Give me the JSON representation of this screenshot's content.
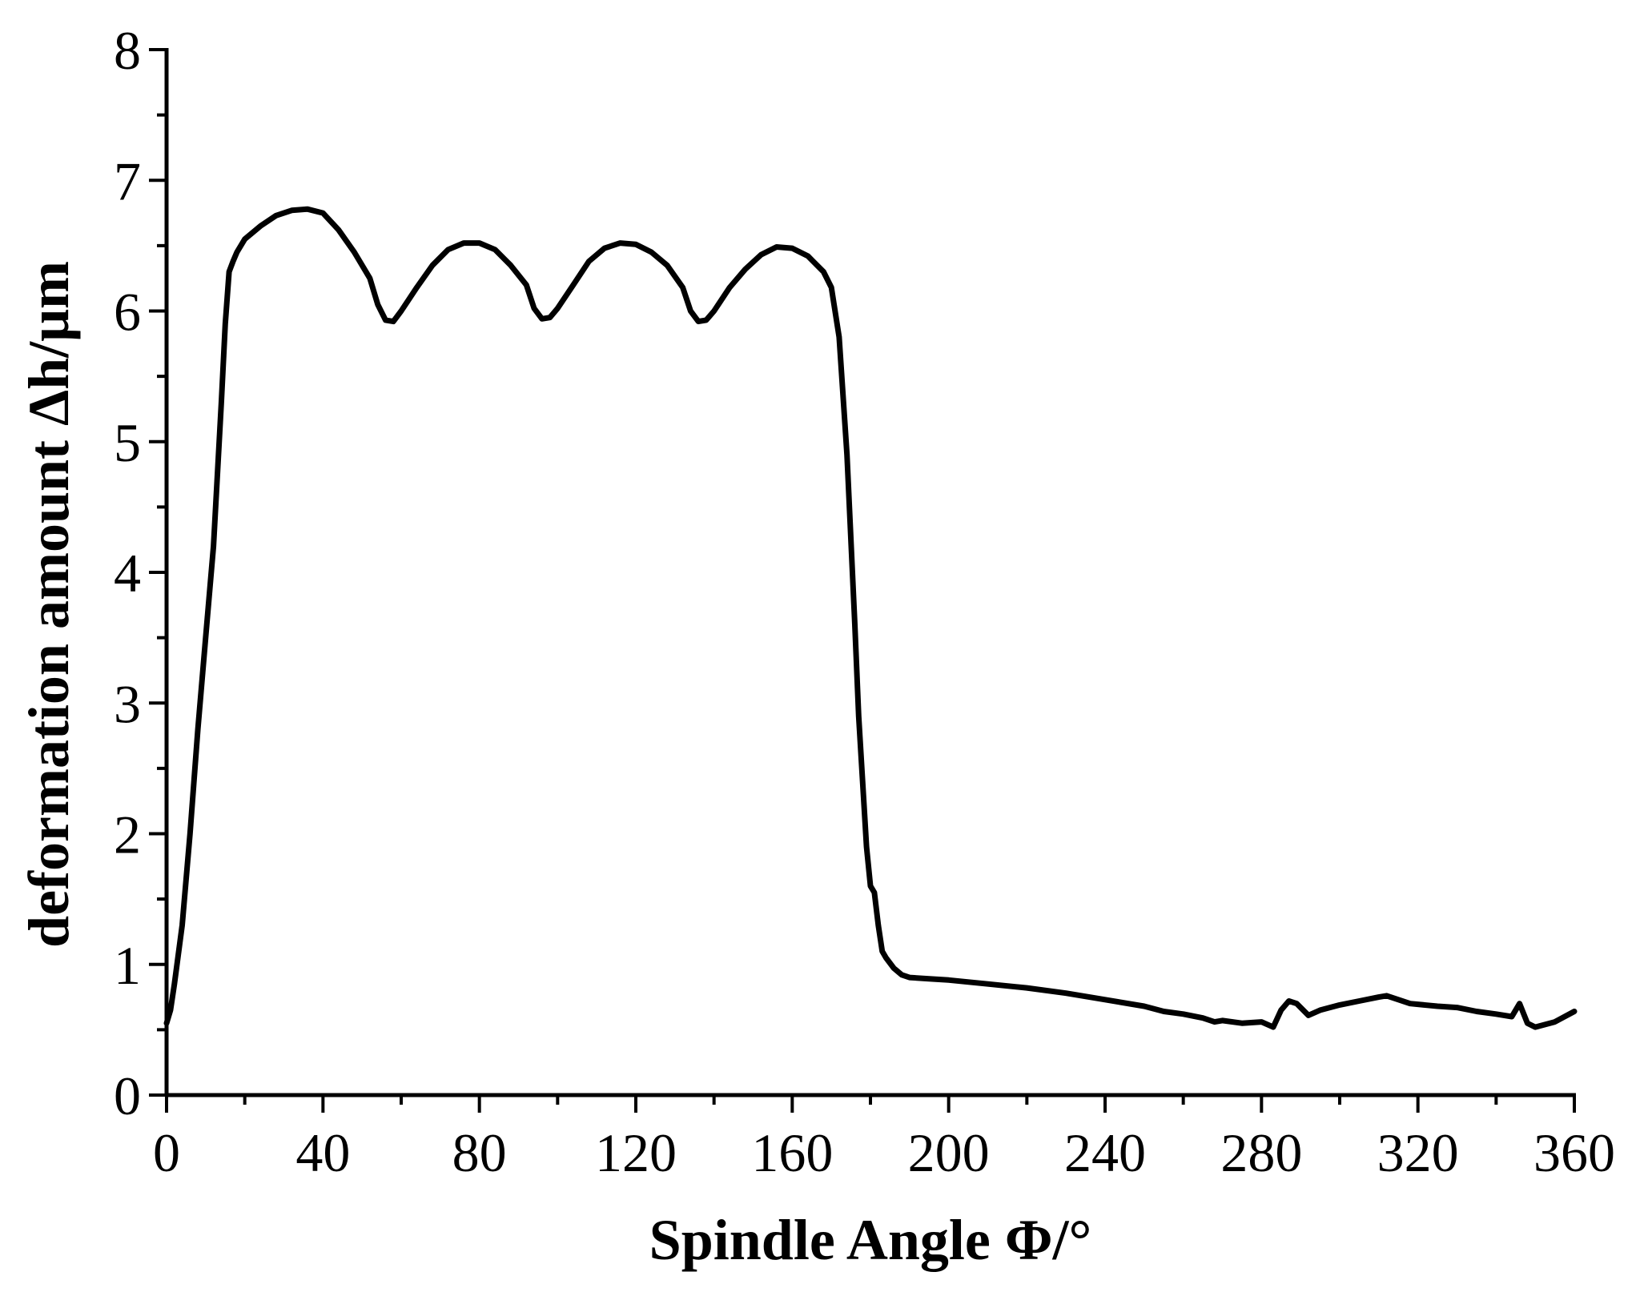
{
  "chart_data": {
    "type": "line",
    "title": "",
    "xlabel": "Spindle Angle Φ/°",
    "ylabel": "deformation amount Δh/μm",
    "xlim": [
      0,
      360
    ],
    "ylim": [
      0,
      8
    ],
    "xticks": [
      0,
      40,
      80,
      120,
      160,
      200,
      240,
      280,
      320,
      360
    ],
    "yticks": [
      0,
      1,
      2,
      3,
      4,
      5,
      6,
      7,
      8
    ],
    "xtick_labels": [
      "0",
      "40",
      "80",
      "120",
      "160",
      "200",
      "240",
      "280",
      "320",
      "360"
    ],
    "ytick_labels": [
      "0",
      "1",
      "2",
      "3",
      "4",
      "5",
      "6",
      "7",
      "8"
    ],
    "grid": false,
    "line_color": "#000000",
    "series": [
      {
        "name": "",
        "x": [
          0,
          1,
          2,
          4,
          6,
          8,
          10,
          12,
          14,
          15,
          16,
          17,
          18,
          20,
          24,
          28,
          32,
          36,
          40,
          44,
          48,
          52,
          54,
          56,
          58,
          60,
          64,
          68,
          72,
          76,
          80,
          84,
          88,
          92,
          94,
          96,
          98,
          100,
          104,
          108,
          112,
          116,
          120,
          124,
          128,
          132,
          134,
          136,
          138,
          140,
          144,
          148,
          152,
          156,
          160,
          164,
          168,
          170,
          172,
          174,
          176,
          177,
          178,
          179,
          180,
          181,
          182,
          183,
          184,
          186,
          188,
          190,
          195,
          200,
          210,
          220,
          230,
          240,
          250,
          255,
          260,
          265,
          268,
          270,
          275,
          280,
          283,
          285,
          287,
          289,
          292,
          295,
          300,
          305,
          310,
          312,
          315,
          318,
          325,
          330,
          335,
          340,
          344,
          346,
          348,
          350,
          355,
          360
        ],
        "y": [
          0.55,
          0.65,
          0.85,
          1.3,
          2.0,
          2.8,
          3.5,
          4.2,
          5.3,
          5.9,
          6.3,
          6.38,
          6.45,
          6.55,
          6.65,
          6.73,
          6.77,
          6.78,
          6.75,
          6.62,
          6.45,
          6.25,
          6.05,
          5.93,
          5.92,
          6.0,
          6.18,
          6.35,
          6.47,
          6.52,
          6.52,
          6.47,
          6.35,
          6.2,
          6.02,
          5.94,
          5.95,
          6.02,
          6.2,
          6.38,
          6.48,
          6.52,
          6.51,
          6.45,
          6.35,
          6.18,
          6.0,
          5.92,
          5.93,
          6.0,
          6.18,
          6.32,
          6.43,
          6.49,
          6.48,
          6.42,
          6.3,
          6.18,
          5.8,
          4.9,
          3.6,
          2.9,
          2.4,
          1.9,
          1.6,
          1.55,
          1.3,
          1.1,
          1.05,
          0.97,
          0.92,
          0.9,
          0.89,
          0.88,
          0.85,
          0.82,
          0.78,
          0.73,
          0.68,
          0.64,
          0.62,
          0.59,
          0.56,
          0.57,
          0.55,
          0.56,
          0.52,
          0.65,
          0.72,
          0.7,
          0.61,
          0.65,
          0.69,
          0.72,
          0.75,
          0.76,
          0.73,
          0.7,
          0.68,
          0.67,
          0.64,
          0.62,
          0.6,
          0.7,
          0.55,
          0.52,
          0.56,
          0.64
        ]
      }
    ]
  }
}
